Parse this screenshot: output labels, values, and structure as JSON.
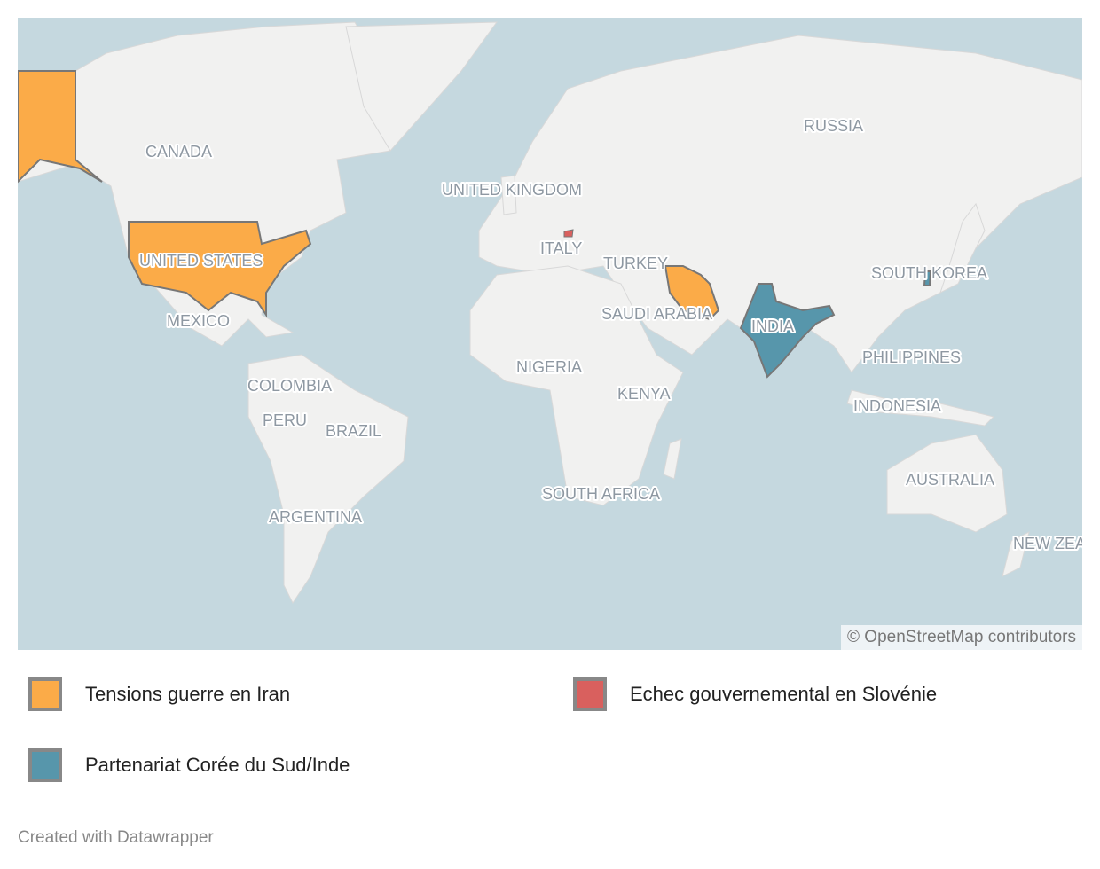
{
  "map": {
    "colors": {
      "ocean": "#c5d8df",
      "land": "#f1f1f0",
      "iran_tensions": "#fbab48",
      "slovenia": "#d9605e",
      "korea_india": "#5796ab"
    },
    "labels": [
      "CANADA",
      "UNITED STATES",
      "MEXICO",
      "COLOMBIA",
      "PERU",
      "BRAZIL",
      "ARGENTINA",
      "UNITED KINGDOM",
      "ITALY",
      "TURKEY",
      "SAUDI ARABIA",
      "NIGERIA",
      "KENYA",
      "SOUTH AFRICA",
      "RUSSIA",
      "INDIA",
      "SOUTH KOREA",
      "PHILIPPINES",
      "INDONESIA",
      "AUSTRALIA",
      "NEW ZEA"
    ],
    "attribution": "© OpenStreetMap contributors"
  },
  "legend": [
    {
      "label": "Tensions guerre en Iran",
      "color": "#fbab48"
    },
    {
      "label": "Echec gouvernemental en Slovénie",
      "color": "#d9605e"
    },
    {
      "label": "Partenariat Corée du Sud/Inde",
      "color": "#5796ab"
    }
  ],
  "footer": "Created with Datawrapper"
}
